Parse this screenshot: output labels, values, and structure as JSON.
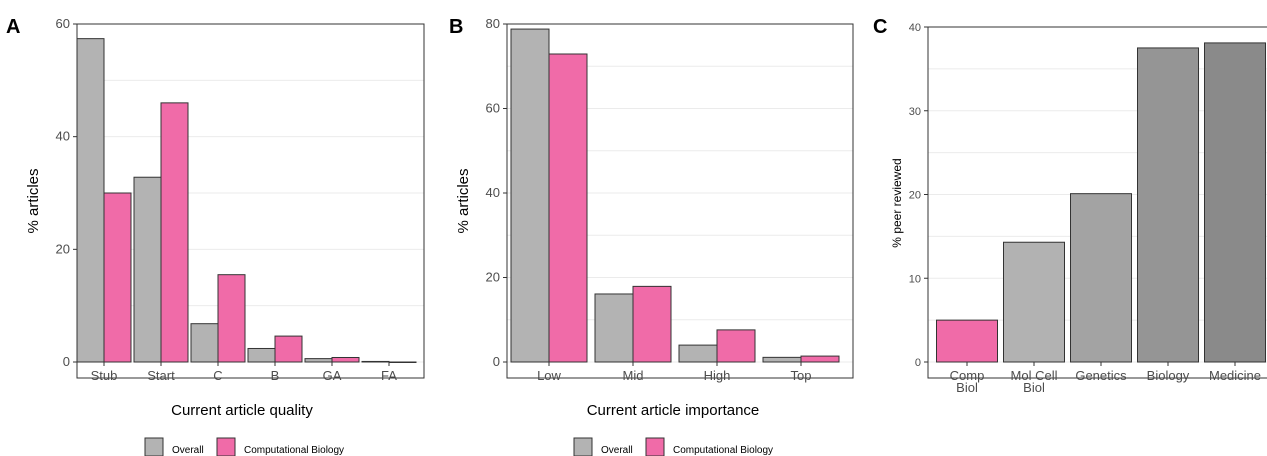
{
  "colors": {
    "overall": "#b3b3b3",
    "comp_bio": "#f06ba8",
    "c_bars": [
      "#f06ba8",
      "#b2b2b2",
      "#a3a3a3",
      "#959595",
      "#8a8a8a"
    ]
  },
  "panels": {
    "a": {
      "letter": "A"
    },
    "b": {
      "letter": "B"
    },
    "c": {
      "letter": "C"
    }
  },
  "legend": {
    "overall": "Overall",
    "comp_bio": "Computational Biology"
  },
  "chart_data": [
    {
      "type": "bar",
      "panel": "A",
      "xlabel": "Current article quality",
      "ylabel": "% articles",
      "categories": [
        "Stub",
        "Start",
        "C",
        "B",
        "GA",
        "FA"
      ],
      "series": [
        {
          "name": "Overall",
          "values": [
            57.4,
            32.8,
            6.8,
            2.4,
            0.6,
            0.1
          ]
        },
        {
          "name": "Computational Biology",
          "values": [
            30.0,
            46.0,
            15.5,
            4.6,
            0.8,
            0.0
          ]
        }
      ],
      "ylim": [
        0,
        60
      ],
      "yticks": [
        0,
        20,
        40,
        60
      ],
      "grid": true,
      "legend_position": "bottom"
    },
    {
      "type": "bar",
      "panel": "B",
      "xlabel": "Current article importance",
      "ylabel": "% articles",
      "categories": [
        "Low",
        "Mid",
        "High",
        "Top"
      ],
      "series": [
        {
          "name": "Overall",
          "values": [
            78.8,
            16.1,
            4.0,
            1.1
          ]
        },
        {
          "name": "Computational Biology",
          "values": [
            72.9,
            17.9,
            7.6,
            1.4
          ]
        }
      ],
      "ylim": [
        0,
        80
      ],
      "yticks": [
        0,
        20,
        40,
        60,
        80
      ],
      "grid": true,
      "legend_position": "bottom"
    },
    {
      "type": "bar",
      "panel": "C",
      "xlabel": "",
      "ylabel": "% peer reviewed",
      "categories": [
        "Comp\nBiol",
        "Mol Cell\nBiol",
        "Genetics",
        "Biology",
        "Medicine"
      ],
      "values": [
        5.0,
        14.3,
        20.1,
        37.5,
        38.1
      ],
      "ylim": [
        0,
        40
      ],
      "yticks": [
        0,
        10,
        20,
        30,
        40
      ],
      "grid": true
    }
  ]
}
